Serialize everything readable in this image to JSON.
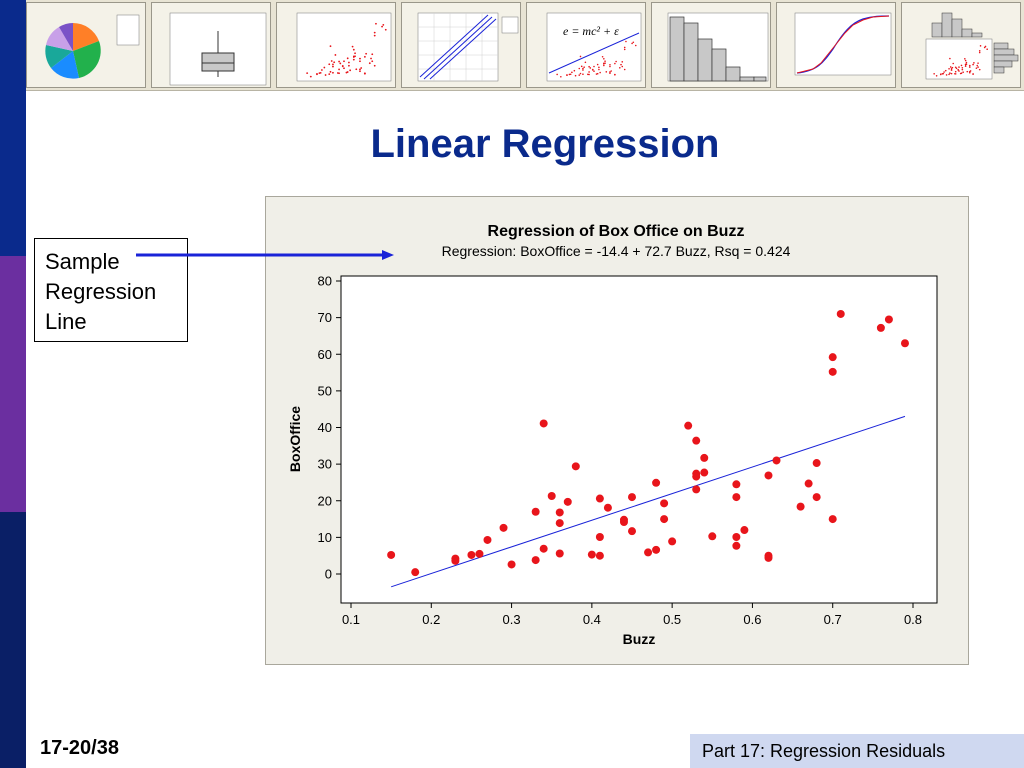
{
  "slide": {
    "title": "Linear Regression",
    "slide_number": "17-20/38",
    "footer": "Part 17: Regression Residuals",
    "callout_lines": [
      "Sample",
      "Regression",
      "Line"
    ]
  },
  "thumbnails": [
    "pie-chart",
    "boxplot",
    "scatterplot",
    "probability-plot",
    "scatterplot-with-regression-line",
    "histogram",
    "empirical-cdf",
    "marginal-plot"
  ],
  "thumbnail_equation": "e = mc² + ε",
  "colors": {
    "sidebar_top": "#0a2a8c",
    "sidebar_mid": "#6b2fa0",
    "sidebar_bottom": "#0a1f66",
    "title": "#0a2a8c",
    "points": "#e8151b",
    "fit_line": "#1a23d8",
    "arrow": "#1a23d8"
  },
  "chart_data": {
    "type": "scatter",
    "title": "Regression of Box Office on Buzz",
    "subtitle": "Regression: BoxOffice = -14.4 + 72.7 Buzz, Rsq = 0.424",
    "xlabel": "Buzz",
    "ylabel": "BoxOffice",
    "xlim": [
      0.1,
      0.8
    ],
    "ylim": [
      -8,
      80
    ],
    "xticks": [
      "0.1",
      "0.2",
      "0.3",
      "0.4",
      "0.5",
      "0.6",
      "0.7",
      "0.8"
    ],
    "yticks": [
      "0",
      "10",
      "20",
      "30",
      "40",
      "50",
      "60",
      "70",
      "80"
    ],
    "grid": false,
    "fit_line": {
      "intercept": -14.4,
      "slope": 72.7,
      "x_range": [
        0.15,
        0.79
      ]
    },
    "points": [
      [
        0.15,
        5.2
      ],
      [
        0.18,
        0.5
      ],
      [
        0.23,
        3.6
      ],
      [
        0.23,
        4.2
      ],
      [
        0.25,
        5.2
      ],
      [
        0.26,
        5.5
      ],
      [
        0.27,
        9.3
      ],
      [
        0.29,
        12.6
      ],
      [
        0.3,
        2.6
      ],
      [
        0.33,
        3.8
      ],
      [
        0.33,
        17.0
      ],
      [
        0.34,
        6.9
      ],
      [
        0.34,
        41.1
      ],
      [
        0.35,
        21.3
      ],
      [
        0.36,
        5.6
      ],
      [
        0.36,
        13.9
      ],
      [
        0.36,
        16.8
      ],
      [
        0.37,
        19.7
      ],
      [
        0.38,
        29.4
      ],
      [
        0.4,
        5.3
      ],
      [
        0.41,
        10.1
      ],
      [
        0.41,
        5.0
      ],
      [
        0.41,
        20.6
      ],
      [
        0.42,
        18.1
      ],
      [
        0.44,
        14.8
      ],
      [
        0.44,
        14.2
      ],
      [
        0.45,
        21.0
      ],
      [
        0.45,
        11.7
      ],
      [
        0.47,
        5.9
      ],
      [
        0.48,
        6.6
      ],
      [
        0.48,
        24.9
      ],
      [
        0.49,
        19.3
      ],
      [
        0.49,
        15.0
      ],
      [
        0.5,
        8.9
      ],
      [
        0.52,
        40.5
      ],
      [
        0.53,
        36.4
      ],
      [
        0.53,
        27.4
      ],
      [
        0.53,
        26.6
      ],
      [
        0.53,
        23.1
      ],
      [
        0.54,
        31.7
      ],
      [
        0.54,
        27.7
      ],
      [
        0.55,
        10.3
      ],
      [
        0.58,
        24.5
      ],
      [
        0.58,
        21.0
      ],
      [
        0.58,
        10.1
      ],
      [
        0.58,
        7.7
      ],
      [
        0.59,
        12.0
      ],
      [
        0.62,
        5.0
      ],
      [
        0.62,
        4.4
      ],
      [
        0.62,
        26.9
      ],
      [
        0.63,
        31.0
      ],
      [
        0.66,
        18.4
      ],
      [
        0.67,
        24.7
      ],
      [
        0.68,
        30.3
      ],
      [
        0.68,
        21.0
      ],
      [
        0.7,
        59.2
      ],
      [
        0.7,
        55.2
      ],
      [
        0.7,
        15.0
      ],
      [
        0.71,
        71.0
      ],
      [
        0.76,
        67.2
      ],
      [
        0.77,
        69.5
      ],
      [
        0.79,
        63.0
      ]
    ]
  }
}
